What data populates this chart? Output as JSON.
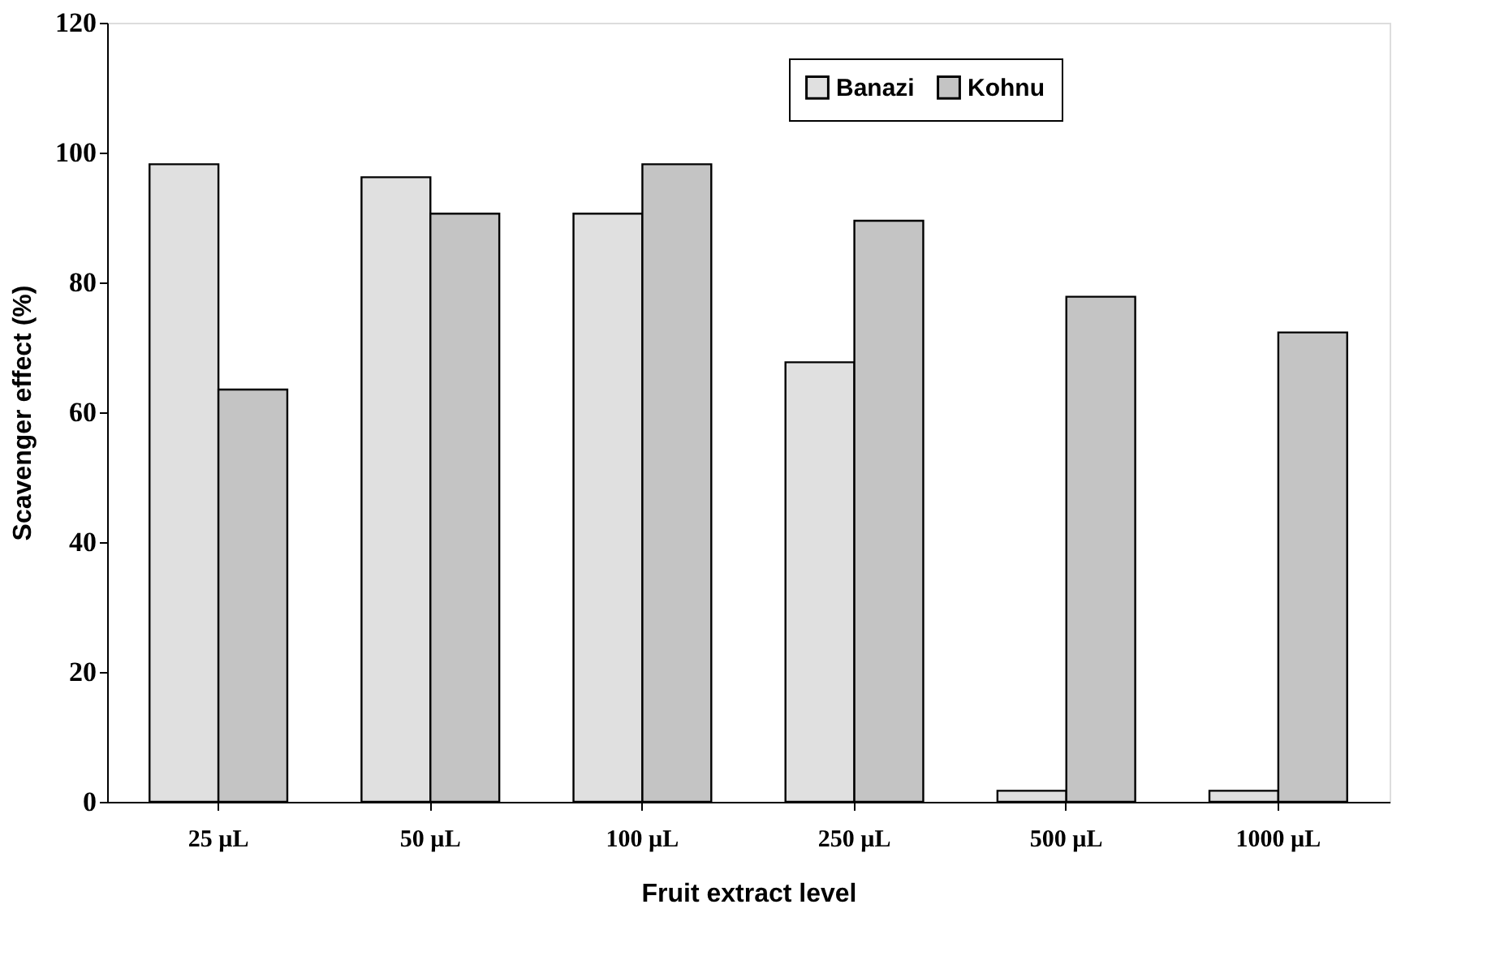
{
  "chart_data": {
    "type": "bar",
    "xlabel": "Fruit extract level",
    "ylabel": "Scavenger effect (%)",
    "categories": [
      "25 µL",
      "50 µL",
      "100 µL",
      "250 µL",
      "500 µL",
      "1000 µL"
    ],
    "series": [
      {
        "name": "Banazi",
        "color": "#e0e0e0",
        "values": [
          98.2,
          96.2,
          90.6,
          67.7,
          1.7,
          1.7
        ]
      },
      {
        "name": "Kohnu",
        "color": "#c4c4c4",
        "values": [
          63.5,
          90.6,
          98.2,
          89.5,
          77.8,
          72.3
        ]
      }
    ],
    "ylim": [
      0,
      120
    ],
    "yticks": [
      0,
      20,
      40,
      60,
      80,
      100,
      120
    ],
    "grid": false,
    "legend": "top"
  }
}
